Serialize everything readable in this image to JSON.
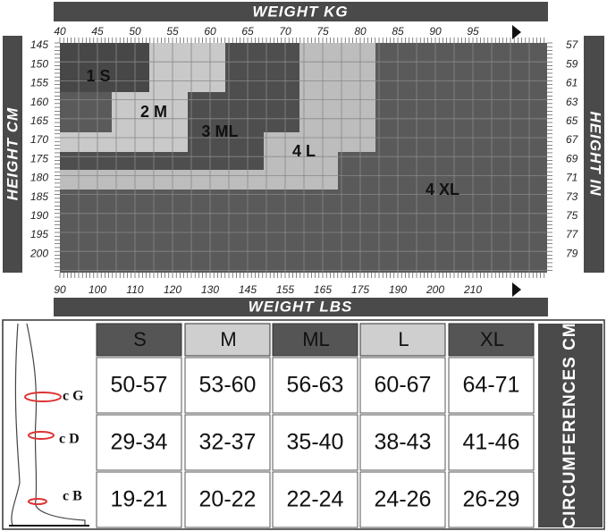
{
  "weight_kg": {
    "title": "WEIGHT KG",
    "ticks": [
      40,
      45,
      50,
      55,
      60,
      65,
      70,
      75,
      80,
      85,
      90,
      95
    ]
  },
  "weight_lbs": {
    "title": "WEIGHT LBS",
    "ticks": [
      90,
      100,
      110,
      120,
      130,
      145,
      155,
      165,
      175,
      190,
      200,
      210
    ]
  },
  "height_cm": {
    "title": "HEIGHT CM",
    "ticks": [
      145,
      150,
      155,
      160,
      165,
      170,
      175,
      180,
      185,
      190,
      195,
      200
    ]
  },
  "height_in": {
    "title": "HEIGHT IN",
    "ticks": [
      57,
      59,
      61,
      63,
      65,
      67,
      69,
      71,
      73,
      75,
      77,
      79
    ]
  },
  "regions": [
    "1 S",
    "2 M",
    "3 ML",
    "4 L",
    "4 XL"
  ],
  "table": {
    "side_label": "CIRCUMFERENCES CM",
    "measures": [
      "c G",
      "c D",
      "c B"
    ],
    "headers": [
      "S",
      "M",
      "ML",
      "L",
      "XL"
    ],
    "rows": [
      [
        "50-57",
        "53-60",
        "56-63",
        "60-67",
        "64-71"
      ],
      [
        "29-34",
        "32-37",
        "35-40",
        "38-43",
        "41-46"
      ],
      [
        "19-21",
        "20-22",
        "22-24",
        "24-26",
        "26-29"
      ]
    ]
  }
}
